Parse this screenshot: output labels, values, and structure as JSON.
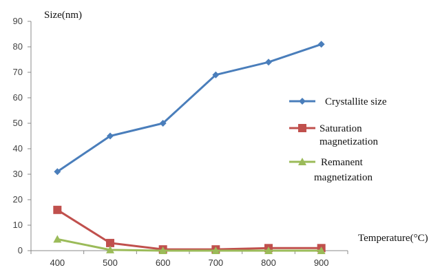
{
  "chart_data": {
    "type": "line",
    "ylabel": "Size(nm)",
    "xlabel": "Temperature(°C)",
    "x": [
      400,
      500,
      600,
      700,
      800,
      900
    ],
    "ylim": [
      0,
      90
    ],
    "yticks": [
      0,
      10,
      20,
      30,
      40,
      50,
      60,
      70,
      80,
      90
    ],
    "grid": false,
    "legend_position": "right",
    "series": [
      {
        "name": "Crystallite size",
        "legend_lines": [
          "Crystallite size"
        ],
        "values": [
          31,
          45,
          50,
          69,
          74,
          81
        ],
        "color": "#4a7ebb",
        "marker": "diamond"
      },
      {
        "name": "Saturation magnetization",
        "legend_lines": [
          "Saturation",
          "magnetization"
        ],
        "values": [
          16,
          3,
          0.5,
          0.5,
          1,
          1
        ],
        "color": "#c0504d",
        "marker": "square"
      },
      {
        "name": "Remanent magnetization",
        "legend_lines": [
          "Remanent",
          "magnetization"
        ],
        "values": [
          4.5,
          0.3,
          0,
          0,
          0,
          0
        ],
        "color": "#9bbb59",
        "marker": "triangle"
      }
    ]
  }
}
